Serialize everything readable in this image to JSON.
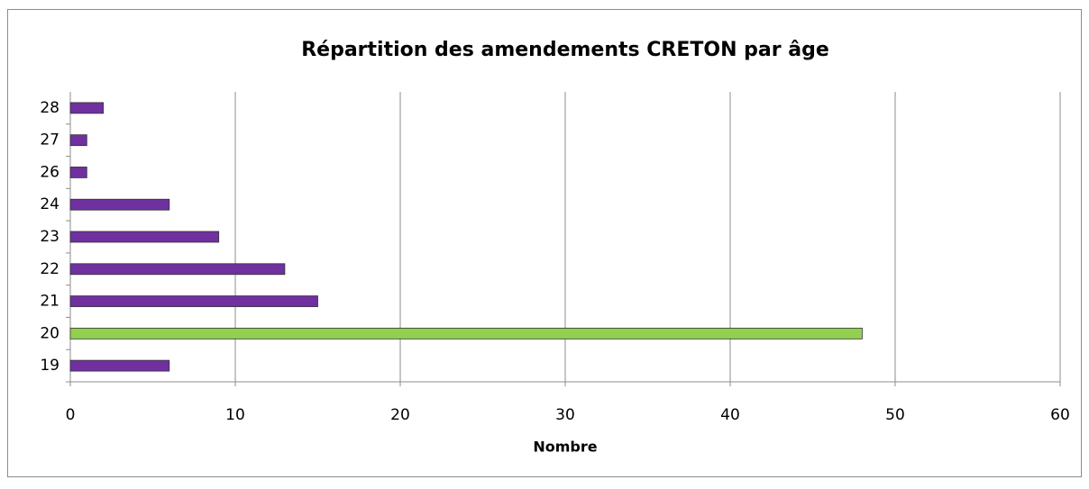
{
  "chart_data": {
    "type": "barh",
    "title": "Répartition des amendements CRETON par âge",
    "xlabel": "Nombre",
    "categories": [
      "19",
      "20",
      "21",
      "22",
      "23",
      "24",
      "26",
      "27",
      "28"
    ],
    "values": [
      6,
      48,
      15,
      13,
      9,
      6,
      1,
      1,
      2
    ],
    "colors": [
      "#7030a0",
      "#92d050",
      "#7030a0",
      "#7030a0",
      "#7030a0",
      "#7030a0",
      "#7030a0",
      "#7030a0",
      "#7030a0"
    ],
    "xlim": [
      0,
      60
    ],
    "xticks": [
      0,
      10,
      20,
      30,
      40,
      50,
      60
    ],
    "grid": true
  }
}
